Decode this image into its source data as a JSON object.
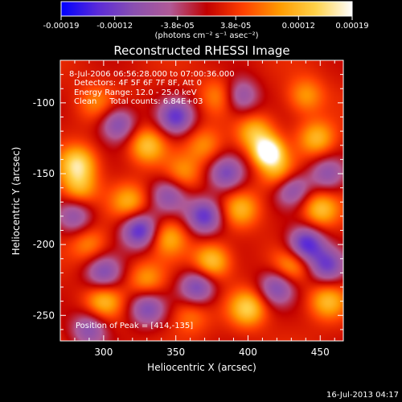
{
  "chart_data": {
    "type": "heatmap",
    "title": "Reconstructed RHESSI Image",
    "xlabel": "Heliocentric X (arcsec)",
    "ylabel": "Heliocentric Y (arcsec)",
    "xlim": [
      270,
      466
    ],
    "ylim": [
      -268,
      -70
    ],
    "x_ticks": [
      "300",
      "350",
      "400",
      "450"
    ],
    "x_tick_values": [
      300,
      350,
      400,
      450
    ],
    "y_ticks": [
      "-100",
      "-150",
      "-200",
      "-250"
    ],
    "y_tick_values": [
      -100,
      -150,
      -200,
      -250
    ],
    "colorbar": {
      "range": [
        -0.00019,
        0.00019
      ],
      "tick_labels": [
        "-0.00019",
        "-0.00012",
        "-3.8e-05",
        "3.8e-05",
        "0.00012",
        "0.00019"
      ],
      "tick_values": [
        -0.00019,
        -0.00012,
        -3.8e-05,
        3.8e-05,
        0.00012,
        0.00019
      ],
      "unit_label": "(photons cm⁻² s⁻¹ asec⁻²)",
      "colormap": [
        "#0000ff",
        "#5a2ad8",
        "#8a50b0",
        "#b05a96",
        "#c00000",
        "#ff4000",
        "#ff9a00",
        "#ffd24a",
        "#ffffff"
      ]
    },
    "annotations": [
      "8-Jul-2006 06:56:28.000 to 07:00:36.000",
      "Detectors: 4F 5F 6F 7F 8F, Att 0",
      "Energy Range: 12.0 - 25.0 keV",
      "Clean     Total counts: 6.84E+03"
    ],
    "peak_label": "Position of Peak = [414,-135]",
    "peak": {
      "x": 414,
      "y": -135
    },
    "sources": [
      {
        "x": 414,
        "y": -135,
        "v": 0.00019
      },
      {
        "x": 405,
        "y": -122,
        "v": 0.00011
      },
      {
        "x": 422,
        "y": -150,
        "v": 0.0001
      },
      {
        "x": 282,
        "y": -143,
        "v": 0.00013
      },
      {
        "x": 283,
        "y": -160,
        "v": 9e-05
      },
      {
        "x": 330,
        "y": -130,
        "v": 0.00011
      },
      {
        "x": 318,
        "y": -170,
        "v": 9e-05
      },
      {
        "x": 345,
        "y": -195,
        "v": 9e-05
      },
      {
        "x": 375,
        "y": -212,
        "v": 0.00012
      },
      {
        "x": 395,
        "y": -175,
        "v": 9e-05
      },
      {
        "x": 450,
        "y": -175,
        "v": 0.00011
      },
      {
        "x": 448,
        "y": -125,
        "v": 0.0001
      },
      {
        "x": 440,
        "y": -95,
        "v": 8e-05
      },
      {
        "x": 300,
        "y": -240,
        "v": 0.0001
      },
      {
        "x": 330,
        "y": -225,
        "v": 8e-05
      },
      {
        "x": 400,
        "y": -245,
        "v": 0.00012
      },
      {
        "x": 455,
        "y": -240,
        "v": 0.0001
      },
      {
        "x": 380,
        "y": -95,
        "v": 7e-05
      },
      {
        "x": 355,
        "y": -150,
        "v": 7e-05
      },
      {
        "x": 430,
        "y": -215,
        "v": 9e-05
      },
      {
        "x": 290,
        "y": -200,
        "v": 7e-05
      },
      {
        "x": 295,
        "y": -100,
        "v": 6e-05
      },
      {
        "x": 370,
        "y": -130,
        "v": 7e-05
      },
      {
        "x": 360,
        "y": -250,
        "v": 6e-05
      },
      {
        "x": 350,
        "y": -110,
        "v": -0.00014
      },
      {
        "x": 310,
        "y": -115,
        "v": -0.00012
      },
      {
        "x": 325,
        "y": -190,
        "v": -0.00016
      },
      {
        "x": 300,
        "y": -220,
        "v": -0.00012
      },
      {
        "x": 370,
        "y": -180,
        "v": -0.00015
      },
      {
        "x": 385,
        "y": -150,
        "v": -0.00012
      },
      {
        "x": 440,
        "y": -200,
        "v": -0.00017
      },
      {
        "x": 430,
        "y": -160,
        "v": -0.00012
      },
      {
        "x": 455,
        "y": -215,
        "v": -0.00013
      },
      {
        "x": 365,
        "y": -230,
        "v": -0.00013
      },
      {
        "x": 420,
        "y": -230,
        "v": -0.00012
      },
      {
        "x": 290,
        "y": -260,
        "v": -0.00011
      },
      {
        "x": 330,
        "y": -245,
        "v": -0.00012
      },
      {
        "x": 395,
        "y": -95,
        "v": -0.00011
      },
      {
        "x": 280,
        "y": -180,
        "v": -0.0001
      },
      {
        "x": 345,
        "y": -165,
        "v": -0.0001
      },
      {
        "x": 455,
        "y": -150,
        "v": -0.0001
      }
    ]
  },
  "footer": {
    "timestamp": "16-Jul-2013 04:17"
  }
}
